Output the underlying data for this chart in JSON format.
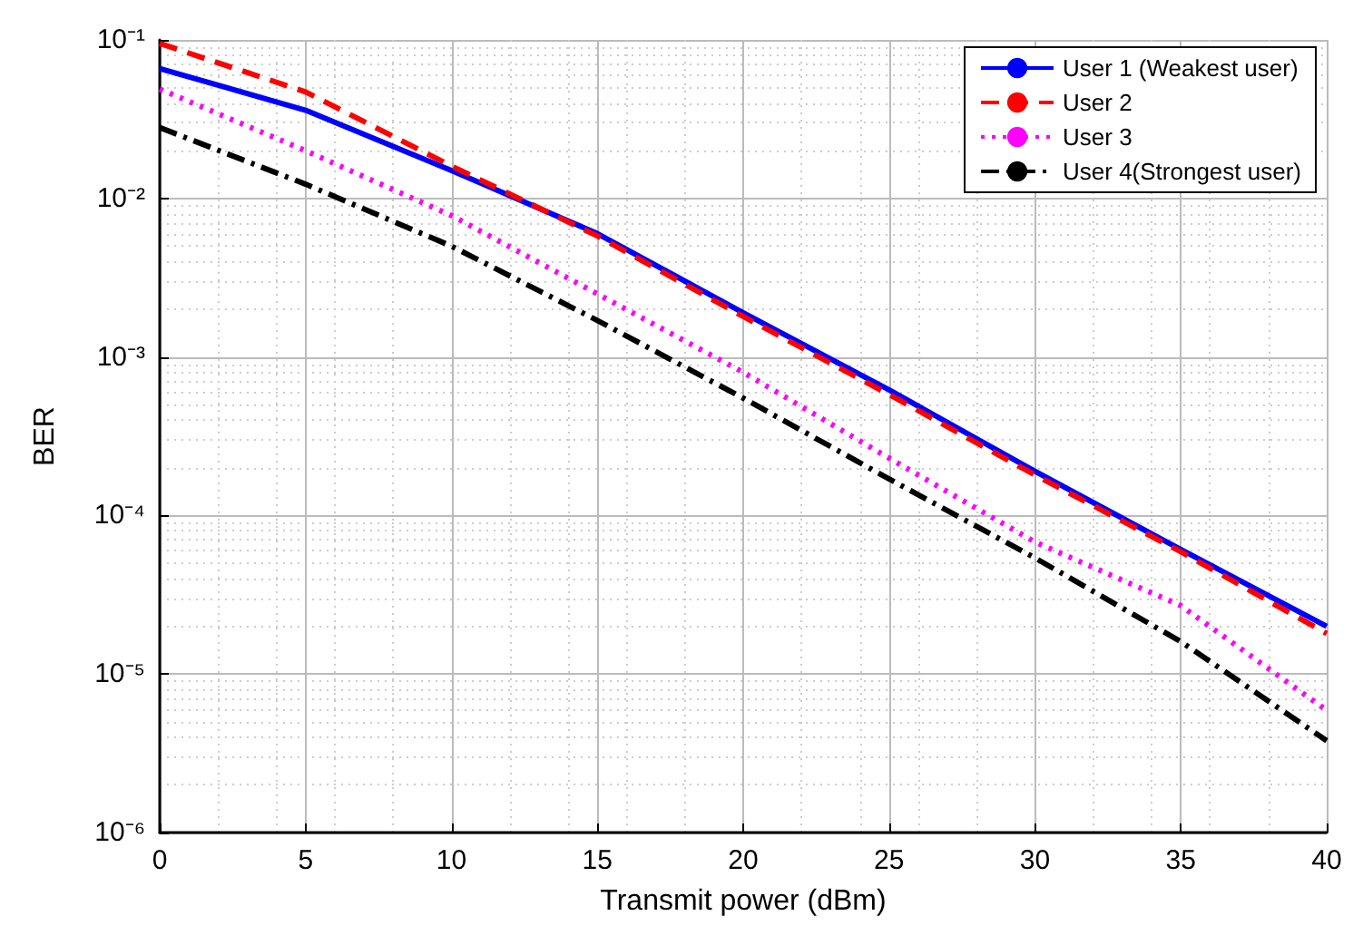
{
  "chart_data": {
    "type": "line",
    "xlabel": "Transmit power (dBm)",
    "ylabel": "BER",
    "log": "y",
    "grid": true,
    "legend": "top right",
    "marker": "none",
    "x": [
      0,
      5,
      10,
      15,
      20,
      25,
      30,
      35,
      40
    ],
    "xlim": [
      0,
      40
    ],
    "xticks": [
      0,
      5,
      10,
      15,
      20,
      25,
      30,
      35,
      40
    ],
    "ylim": [
      1e-06,
      0.1
    ],
    "yticks": [
      {
        "value": 1e-06,
        "label": "10⁻⁶"
      },
      {
        "value": 1e-05,
        "label": "10⁻⁵"
      },
      {
        "value": 0.0001,
        "label": "10⁻⁴"
      },
      {
        "value": 0.001,
        "label": "10⁻³"
      },
      {
        "value": 0.01,
        "label": "10⁻²"
      },
      {
        "value": 0.1,
        "label": "10⁻¹"
      }
    ],
    "series": [
      {
        "name": "User 1 (Weakest user)",
        "color": "#0000ff",
        "line_style": "solid",
        "values": [
          0.066,
          0.036,
          0.015,
          0.006,
          0.0019,
          0.00062,
          0.00019,
          6.1e-05,
          2e-05
        ]
      },
      {
        "name": "User 2",
        "color": "#ff0000",
        "line_style": "dashed",
        "values": [
          0.095,
          0.047,
          0.016,
          0.0058,
          0.0018,
          0.00058,
          0.00018,
          5.9e-05,
          1.8e-05
        ]
      },
      {
        "name": "User 3",
        "color": "#ff00ff",
        "line_style": "dotted",
        "values": [
          0.049,
          0.02,
          0.0078,
          0.0025,
          0.0008,
          0.00023,
          6.8e-05,
          2.7e-05,
          5.9e-06
        ]
      },
      {
        "name": "User 4(Strongest user)",
        "color": "#000000",
        "line_style": "dashdot",
        "values": [
          0.028,
          0.0123,
          0.005,
          0.0017,
          0.00055,
          0.00017,
          5.4e-05,
          1.6e-05,
          3.8e-06
        ]
      }
    ]
  }
}
